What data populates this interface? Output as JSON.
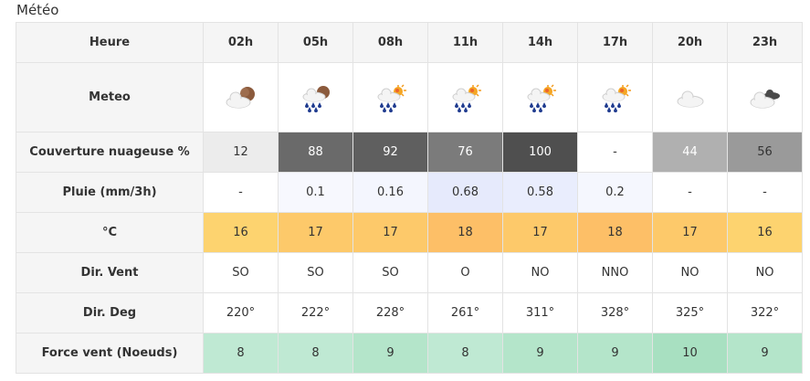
{
  "title": "Météo",
  "labels": {
    "heure": "Heure",
    "meteo": "Meteo",
    "couverture": "Couverture nuageuse %",
    "pluie": "Pluie (mm/3h)",
    "temp": "°C",
    "dir_vent": "Dir. Vent",
    "dir_deg": "Dir. Deg",
    "force": "Force vent (Noeuds)"
  },
  "hours": [
    "02h",
    "05h",
    "08h",
    "11h",
    "14h",
    "17h",
    "20h",
    "23h"
  ],
  "icons": [
    "cloud-moon-icon",
    "rain-cloud-moon-icon",
    "rain-cloud-sun-icon",
    "rain-cloud-sun-icon",
    "rain-cloud-sun-icon",
    "rain-cloud-sun-icon",
    "cloud-icon",
    "cloud-dark-cloud-icon"
  ],
  "couverture": [
    "12",
    "88",
    "92",
    "76",
    "100",
    "-",
    "44",
    "56"
  ],
  "couverture_colors": [
    "#ececec",
    "#6a6a6a",
    "#5f5f5f",
    "#7b7b7b",
    "#4f4f4f",
    "#ffffff",
    "#b0b0b0",
    "#9a9a9a"
  ],
  "couverture_text_colors": [
    "#333333",
    "#ffffff",
    "#ffffff",
    "#ffffff",
    "#ffffff",
    "#333333",
    "#ffffff",
    "#333333"
  ],
  "pluie": [
    "-",
    "0.1",
    "0.16",
    "0.68",
    "0.58",
    "0.2",
    "-",
    "-"
  ],
  "pluie_colors": [
    "#ffffff",
    "#f7f8fe",
    "#f4f6fe",
    "#e6eafc",
    "#e9edfd",
    "#f5f7fe",
    "#ffffff",
    "#ffffff"
  ],
  "temp": [
    "16",
    "17",
    "17",
    "18",
    "17",
    "18",
    "17",
    "16"
  ],
  "temp_colors": [
    "#fdd36f",
    "#fdc96a",
    "#fdc96a",
    "#fdbf67",
    "#fdc96a",
    "#fdbf67",
    "#fdc96a",
    "#fdd36f"
  ],
  "dir_vent": [
    "SO",
    "SO",
    "SO",
    "O",
    "NO",
    "NNO",
    "NO",
    "NO"
  ],
  "dir_deg": [
    "220°",
    "222°",
    "228°",
    "261°",
    "311°",
    "328°",
    "325°",
    "322°"
  ],
  "force": [
    "8",
    "8",
    "9",
    "8",
    "9",
    "9",
    "10",
    "9"
  ],
  "force_colors": [
    "#bfe9d3",
    "#bfe9d3",
    "#b4e5ca",
    "#bfe9d3",
    "#b4e5ca",
    "#b4e5ca",
    "#a8e0c1",
    "#b4e5ca"
  ]
}
